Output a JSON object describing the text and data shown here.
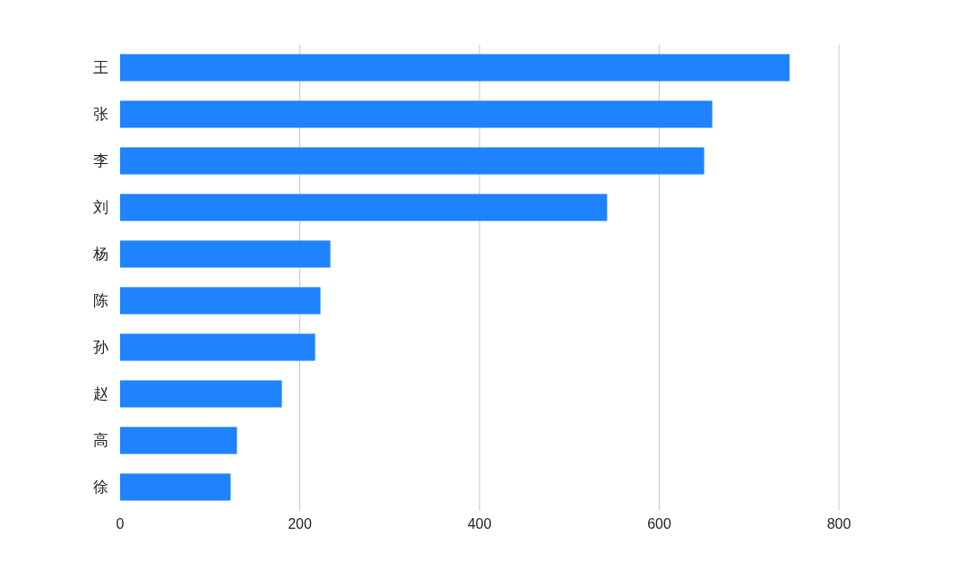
{
  "chart_data": {
    "type": "bar",
    "orientation": "horizontal",
    "categories": [
      "王",
      "张",
      "李",
      "刘",
      "杨",
      "陈",
      "孙",
      "赵",
      "高",
      "徐"
    ],
    "values": [
      745,
      659,
      650,
      542,
      234,
      223,
      217,
      180,
      130,
      123
    ],
    "color": "#1f83ff",
    "xlim": [
      0,
      800
    ],
    "xticks": [
      0,
      200,
      400,
      600,
      800
    ],
    "grid": "x"
  }
}
